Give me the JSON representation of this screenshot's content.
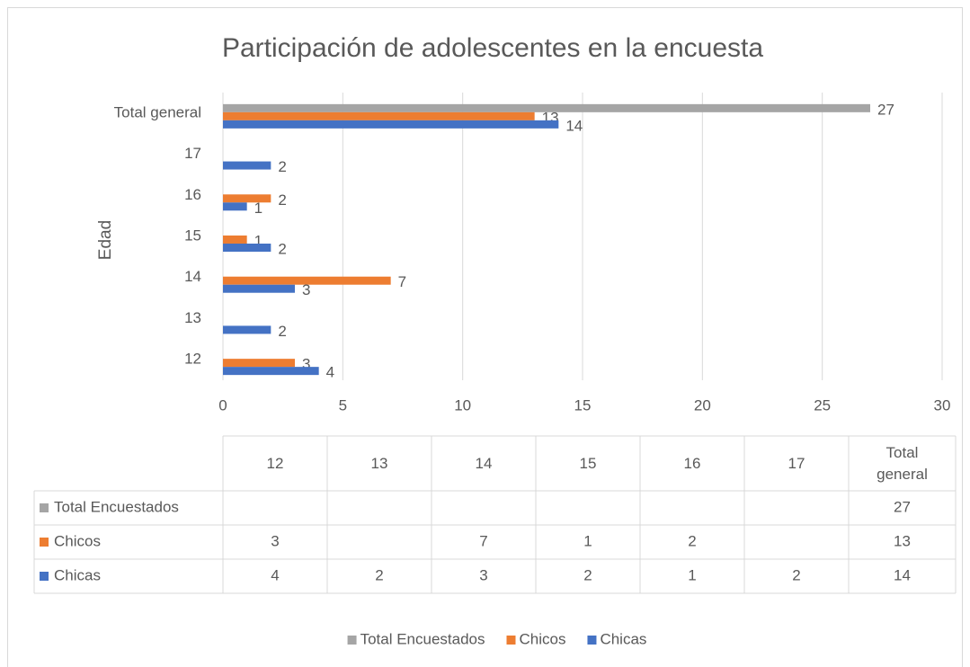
{
  "chart_data": {
    "type": "barh",
    "title": "Participación de adolescentes en la encuesta",
    "y_label": "Edad",
    "categories": [
      "12",
      "13",
      "14",
      "15",
      "16",
      "17",
      "Total general"
    ],
    "series": [
      {
        "name": "Total Encuestados",
        "color": "#a5a5a5",
        "values": [
          null,
          null,
          null,
          null,
          null,
          null,
          27
        ]
      },
      {
        "name": "Chicos",
        "color": "#ed7d31",
        "values": [
          3,
          null,
          7,
          1,
          2,
          null,
          13
        ]
      },
      {
        "name": "Chicas",
        "color": "#4472c4",
        "values": [
          4,
          2,
          3,
          2,
          1,
          2,
          14
        ]
      }
    ],
    "xlim": [
      0,
      30
    ],
    "xticks": [
      0,
      5,
      10,
      15,
      20,
      25,
      30
    ],
    "grid": true,
    "legend": "bottom",
    "data_table": true
  }
}
